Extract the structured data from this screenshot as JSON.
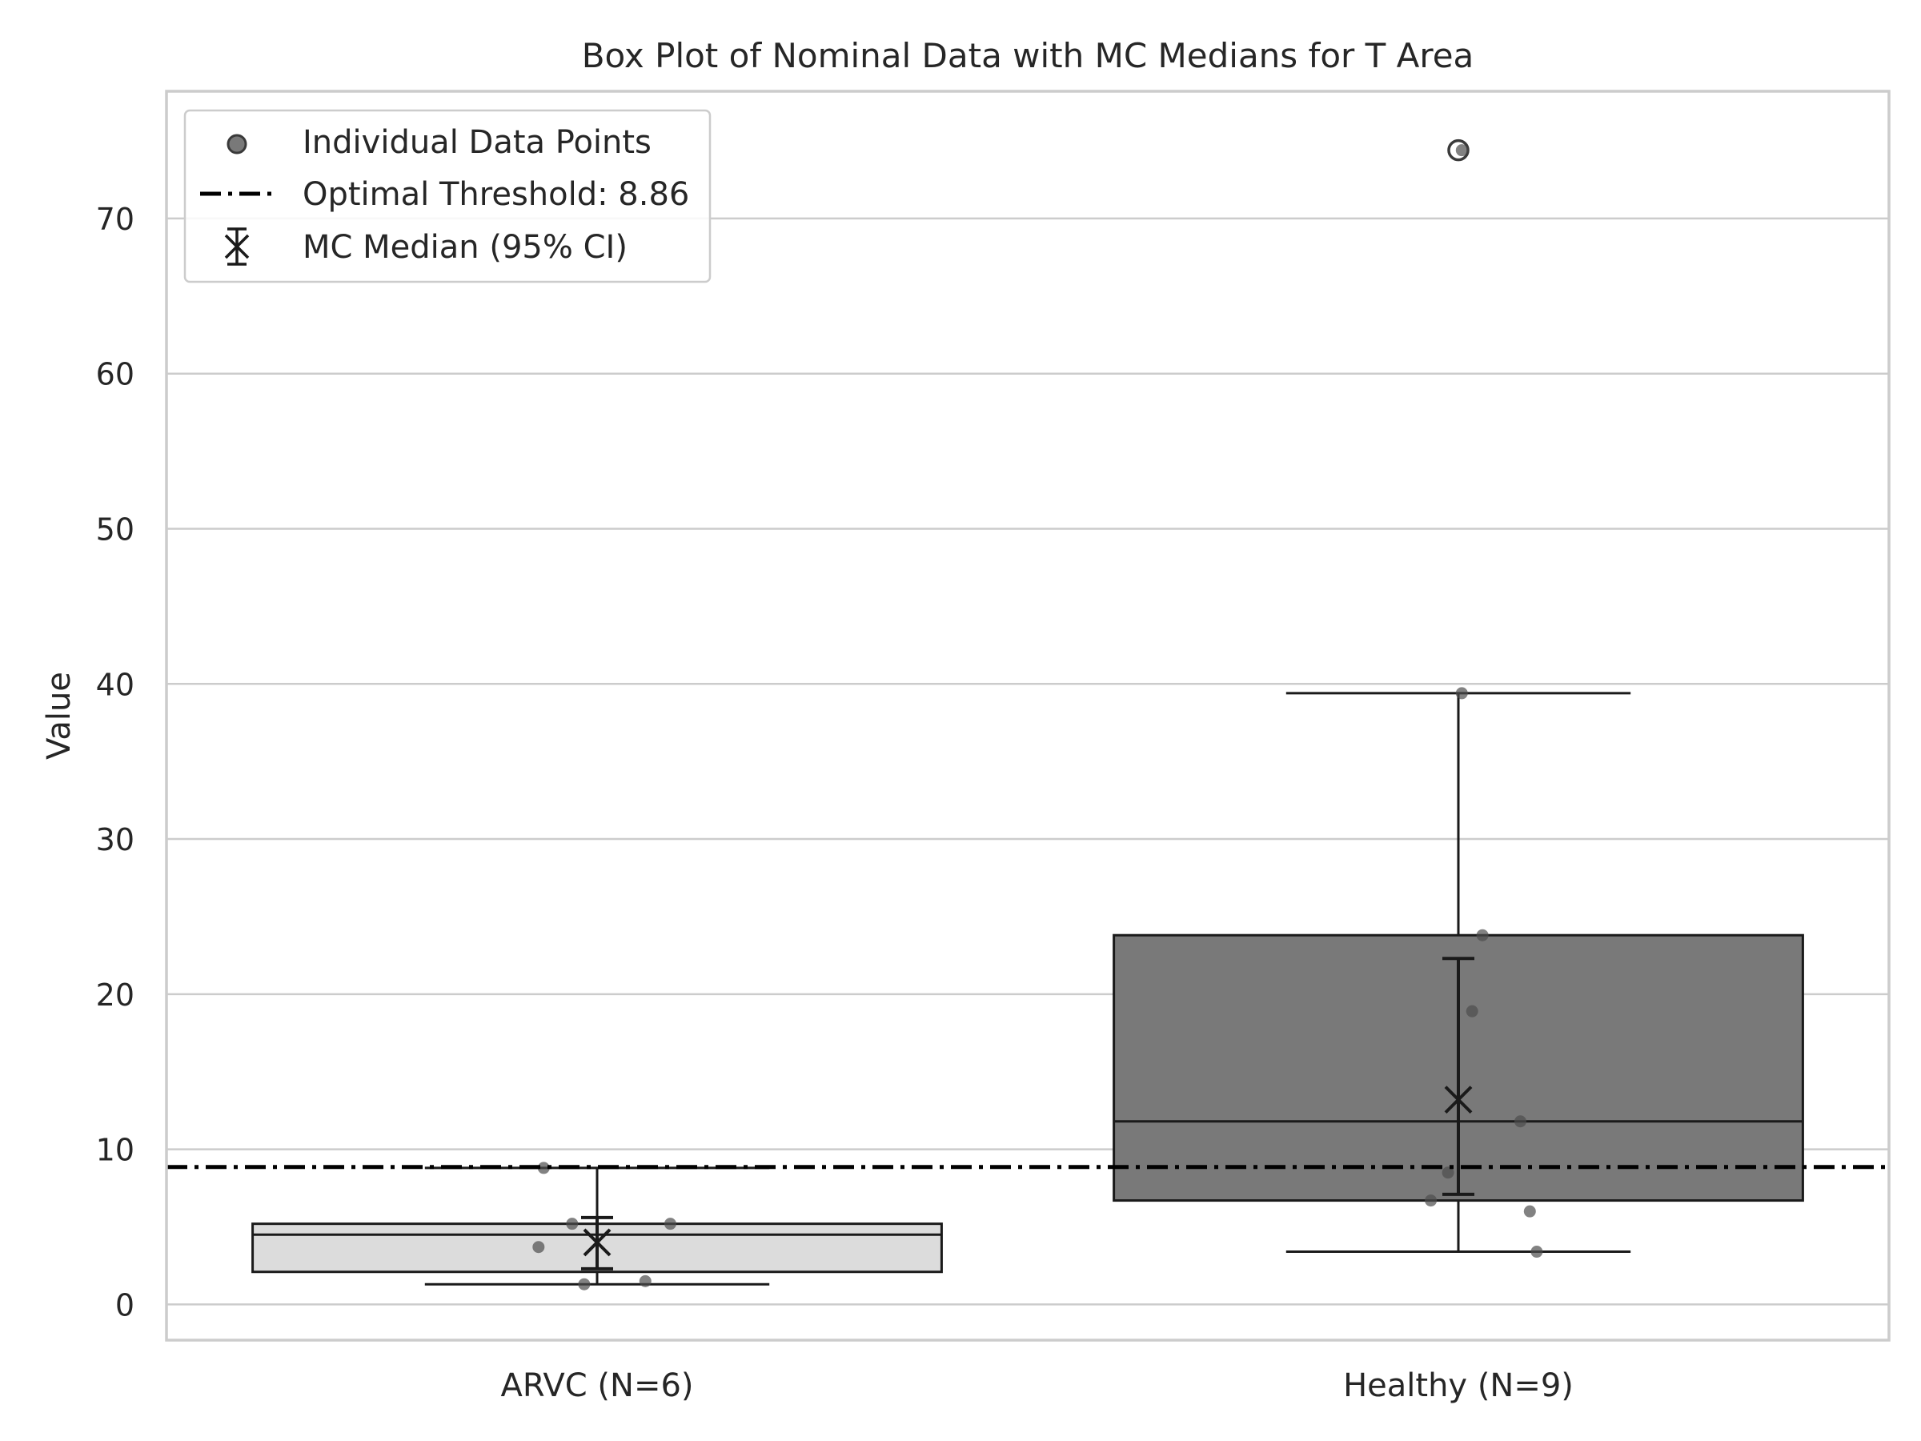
{
  "chart_data": {
    "type": "box",
    "title": "Box Plot of Nominal Data with MC Medians for T Area",
    "xlabel": "",
    "ylabel": "Value",
    "ylim": [
      -2.3,
      78.2
    ],
    "yticks": [
      0,
      10,
      20,
      30,
      40,
      50,
      60,
      70
    ],
    "grid": "horizontal",
    "legend_position": "top-left",
    "categories": [
      "ARVC (N=6)",
      "Healthy (N=9)"
    ],
    "boxes": [
      {
        "category": "ARVC (N=6)",
        "whisker_low": 1.3,
        "q1": 2.1,
        "median": 4.5,
        "q3": 5.2,
        "whisker_high": 8.8,
        "color": "#dcdcdc",
        "outliers": []
      },
      {
        "category": "Healthy (N=9)",
        "whisker_low": 3.4,
        "q1": 6.7,
        "median": 11.8,
        "q3": 23.8,
        "whisker_high": 39.4,
        "color": "#797979",
        "outliers": [
          74.4
        ]
      }
    ],
    "points": [
      {
        "category": "ARVC (N=6)",
        "values": [
          8.8,
          5.2,
          3.7,
          1.3,
          1.5,
          5.2
        ],
        "jitter": [
          -0.062,
          -0.029,
          -0.068,
          -0.015,
          0.056,
          0.085
        ]
      },
      {
        "category": "Healthy (N=9)",
        "values": [
          74.4,
          39.4,
          23.8,
          18.9,
          11.8,
          8.5,
          6.7,
          6.0,
          3.4
        ],
        "jitter": [
          0.004,
          0.004,
          0.028,
          0.016,
          0.072,
          -0.012,
          -0.032,
          0.083,
          0.091
        ]
      }
    ],
    "mc_median": [
      {
        "category": "ARVC (N=6)",
        "median": 4.0,
        "ci_low": 2.3,
        "ci_high": 5.6
      },
      {
        "category": "Healthy (N=9)",
        "median": 13.2,
        "ci_low": 7.1,
        "ci_high": 22.3
      }
    ],
    "threshold": {
      "value": 8.86
    },
    "legend": {
      "items": [
        {
          "label": "Individual Data Points",
          "icon": "circle-marker"
        },
        {
          "label": "Optimal Threshold: 8.86",
          "icon": "dash-dot-line"
        },
        {
          "label": "MC Median (95% CI)",
          "icon": "x-errorbar"
        }
      ]
    },
    "colors": {
      "grid": "#cccccc",
      "frame": "#cccccc",
      "point": "#4d4d4d",
      "line": "#1a1a1a"
    }
  }
}
